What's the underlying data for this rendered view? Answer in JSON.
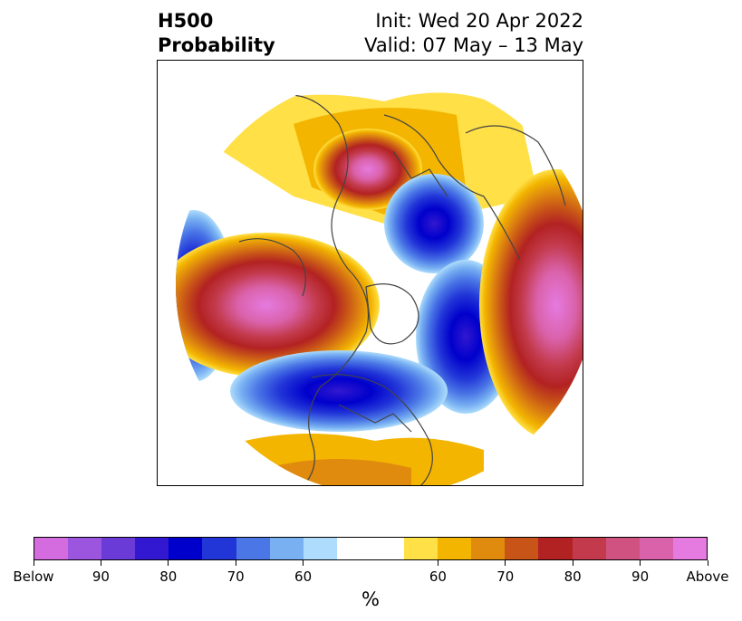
{
  "header": {
    "variable": "H500",
    "product": "Probability",
    "init": "Init: Wed 20 Apr 2022",
    "valid": "Valid: 07 May – 13 May"
  },
  "map": {
    "projection": "north-polar-stereographic",
    "features": [
      "coastlines",
      "country-borders",
      "state-borders"
    ]
  },
  "colorbar": {
    "unit": "%",
    "below_colors": [
      "#d46ce0",
      "#9b55de",
      "#6a3bd6",
      "#3218d0",
      "#0000cc",
      "#2236d8",
      "#4a76e6",
      "#78b0f2",
      "#aedcfc"
    ],
    "neutral_color": "#ffffff",
    "above_colors": [
      "#ffe047",
      "#f3b500",
      "#e08b0e",
      "#c85417",
      "#b22222",
      "#c33a4c",
      "#cf5280",
      "#da62ab",
      "#e57ae0"
    ],
    "tick_labels": [
      "Below",
      "90",
      "80",
      "70",
      "60",
      "60",
      "70",
      "80",
      "90",
      "Above"
    ]
  }
}
